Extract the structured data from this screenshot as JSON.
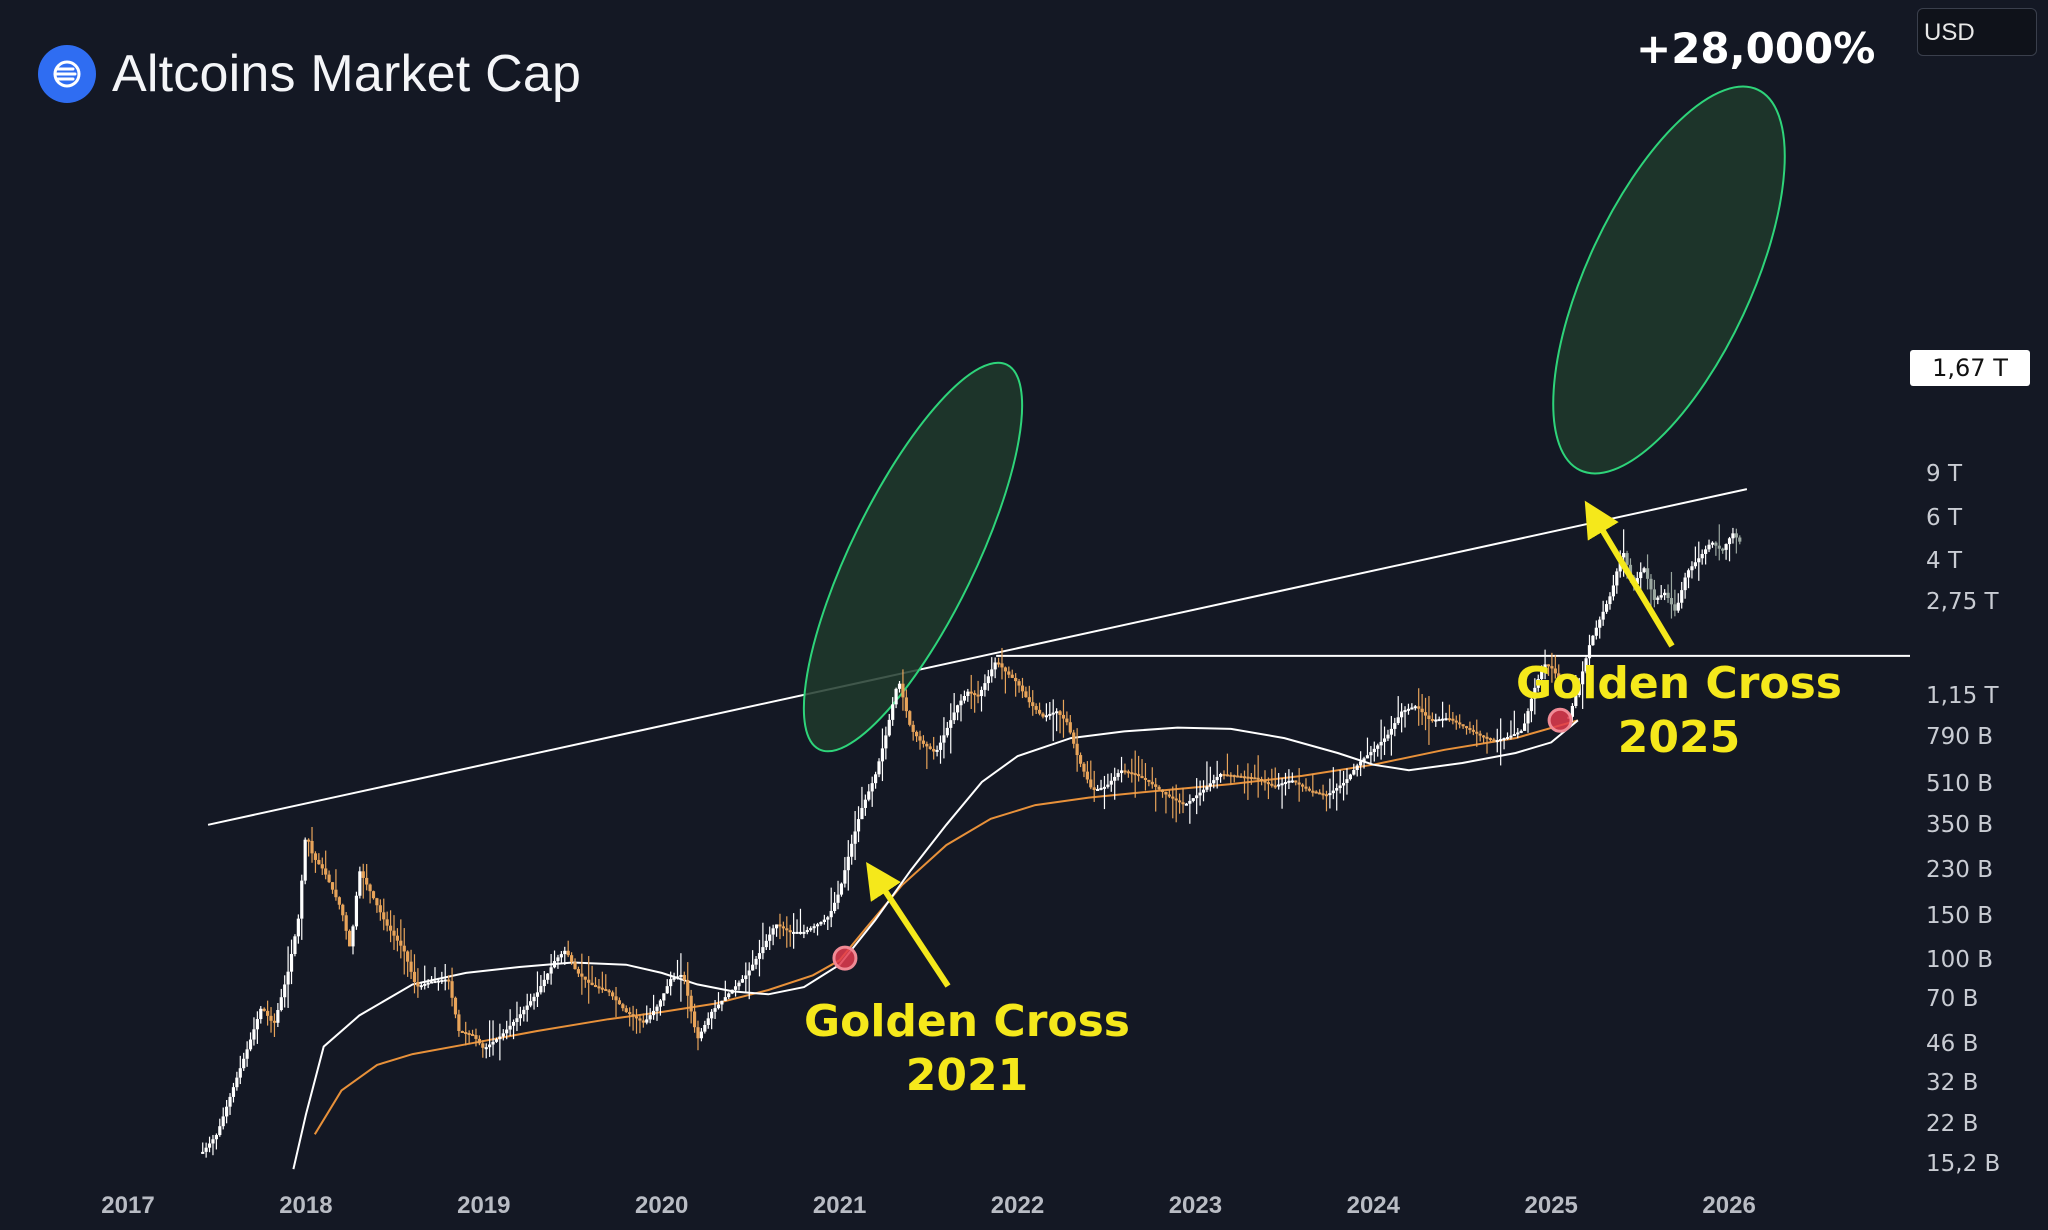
{
  "header": {
    "title": "Altcoins Market Cap",
    "logo_icon": "altcoins-logo-icon",
    "currency": "USD"
  },
  "annotations": {
    "gain": "+28,000%",
    "gc_2021_line1": "Golden Cross",
    "gc_2021_line2": "2021",
    "gc_2025_line1": "Golden Cross",
    "gc_2025_line2": "2025",
    "price_tag": "1,67 T"
  },
  "colors": {
    "background": "#141824",
    "candle": "#e8a45a",
    "candle_alt": "#ffffff",
    "ma_orange": "#e8913a",
    "ma_white": "#ffffff",
    "ellipse_fill": "#1e3a2c",
    "ellipse_stroke": "#2ed47a",
    "cross_marker": "#e23b4e",
    "arrow": "#f5e81b",
    "projection": "#9aa7a0"
  },
  "chart_data": {
    "type": "candlestick",
    "title": "Altcoins Market Cap",
    "currency": "USD",
    "y_scale": "log",
    "y_tick_labels": [
      "9 T",
      "6 T",
      "4 T",
      "2,75 T",
      "1,67 T",
      "1,15 T",
      "790 B",
      "510 B",
      "350 B",
      "230 B",
      "150 B",
      "100 B",
      "70 B",
      "46 B",
      "32 B",
      "22 B",
      "15,2 B"
    ],
    "y_tick_values_usd": [
      9000000000000.0,
      6000000000000.0,
      4000000000000.0,
      2750000000000.0,
      1670000000000.0,
      1150000000000.0,
      790000000000.0,
      510000000000.0,
      350000000000.0,
      230000000000.0,
      150000000000.0,
      100000000000.0,
      70000000000.0,
      46000000000.0,
      32000000000.0,
      22000000000.0,
      15200000000.0
    ],
    "x_tick_labels": [
      "2017",
      "2018",
      "2019",
      "2020",
      "2021",
      "2022",
      "2023",
      "2024",
      "2025",
      "2026"
    ],
    "x_range": [
      2017.0,
      2026.25
    ],
    "y_range_usd": [
      14000000000.0,
      10000000000000.0
    ],
    "series": [
      {
        "kind": "price",
        "points": [
          [
            2017.42,
            17000000000.0
          ],
          [
            2017.5,
            20000000000.0
          ],
          [
            2017.6,
            32000000000.0
          ],
          [
            2017.68,
            46000000000.0
          ],
          [
            2017.75,
            65000000000.0
          ],
          [
            2017.82,
            55000000000.0
          ],
          [
            2017.9,
            90000000000.0
          ],
          [
            2017.96,
            150000000000.0
          ],
          [
            2018.0,
            330000000000.0
          ],
          [
            2018.04,
            260000000000.0
          ],
          [
            2018.1,
            230000000000.0
          ],
          [
            2018.2,
            160000000000.0
          ],
          [
            2018.25,
            110000000000.0
          ],
          [
            2018.3,
            230000000000.0
          ],
          [
            2018.36,
            190000000000.0
          ],
          [
            2018.45,
            140000000000.0
          ],
          [
            2018.55,
            110000000000.0
          ],
          [
            2018.62,
            78000000000.0
          ],
          [
            2018.7,
            82000000000.0
          ],
          [
            2018.8,
            84000000000.0
          ],
          [
            2018.86,
            52000000000.0
          ],
          [
            2018.94,
            50000000000.0
          ],
          [
            2019.0,
            44000000000.0
          ],
          [
            2019.1,
            50000000000.0
          ],
          [
            2019.2,
            60000000000.0
          ],
          [
            2019.3,
            74000000000.0
          ],
          [
            2019.4,
            100000000000.0
          ],
          [
            2019.46,
            110000000000.0
          ],
          [
            2019.52,
            90000000000.0
          ],
          [
            2019.6,
            80000000000.0
          ],
          [
            2019.7,
            75000000000.0
          ],
          [
            2019.8,
            62000000000.0
          ],
          [
            2019.9,
            56000000000.0
          ],
          [
            2019.98,
            66000000000.0
          ],
          [
            2020.05,
            84000000000.0
          ],
          [
            2020.12,
            88000000000.0
          ],
          [
            2020.2,
            48000000000.0
          ],
          [
            2020.28,
            62000000000.0
          ],
          [
            2020.38,
            74000000000.0
          ],
          [
            2020.48,
            88000000000.0
          ],
          [
            2020.56,
            110000000000.0
          ],
          [
            2020.64,
            140000000000.0
          ],
          [
            2020.72,
            130000000000.0
          ],
          [
            2020.8,
            130000000000.0
          ],
          [
            2020.88,
            140000000000.0
          ],
          [
            2020.94,
            150000000000.0
          ],
          [
            2021.0,
            190000000000.0
          ],
          [
            2021.06,
            280000000000.0
          ],
          [
            2021.12,
            400000000000.0
          ],
          [
            2021.2,
            550000000000.0
          ],
          [
            2021.26,
            800000000000.0
          ],
          [
            2021.33,
            1350000000000.0
          ],
          [
            2021.4,
            850000000000.0
          ],
          [
            2021.46,
            750000000000.0
          ],
          [
            2021.54,
            680000000000.0
          ],
          [
            2021.6,
            840000000000.0
          ],
          [
            2021.66,
            1050000000000.0
          ],
          [
            2021.72,
            1200000000000.0
          ],
          [
            2021.78,
            1150000000000.0
          ],
          [
            2021.84,
            1400000000000.0
          ],
          [
            2021.88,
            1600000000000.0
          ],
          [
            2021.93,
            1450000000000.0
          ],
          [
            2022.0,
            1300000000000.0
          ],
          [
            2022.06,
            1100000000000.0
          ],
          [
            2022.14,
            950000000000.0
          ],
          [
            2022.22,
            1000000000000.0
          ],
          [
            2022.28,
            900000000000.0
          ],
          [
            2022.34,
            650000000000.0
          ],
          [
            2022.42,
            480000000000.0
          ],
          [
            2022.5,
            500000000000.0
          ],
          [
            2022.58,
            580000000000.0
          ],
          [
            2022.66,
            560000000000.0
          ],
          [
            2022.74,
            520000000000.0
          ],
          [
            2022.84,
            460000000000.0
          ],
          [
            2022.94,
            420000000000.0
          ],
          [
            2023.04,
            480000000000.0
          ],
          [
            2023.14,
            560000000000.0
          ],
          [
            2023.24,
            550000000000.0
          ],
          [
            2023.34,
            540000000000.0
          ],
          [
            2023.44,
            500000000000.0
          ],
          [
            2023.54,
            530000000000.0
          ],
          [
            2023.64,
            480000000000.0
          ],
          [
            2023.74,
            460000000000.0
          ],
          [
            2023.84,
            520000000000.0
          ],
          [
            2023.92,
            620000000000.0
          ],
          [
            2024.0,
            700000000000.0
          ],
          [
            2024.08,
            800000000000.0
          ],
          [
            2024.16,
            1000000000000.0
          ],
          [
            2024.24,
            1050000000000.0
          ],
          [
            2024.32,
            920000000000.0
          ],
          [
            2024.42,
            940000000000.0
          ],
          [
            2024.52,
            860000000000.0
          ],
          [
            2024.6,
            800000000000.0
          ],
          [
            2024.68,
            760000000000.0
          ],
          [
            2024.76,
            790000000000.0
          ],
          [
            2024.84,
            840000000000.0
          ],
          [
            2024.9,
            1200000000000.0
          ],
          [
            2024.96,
            1550000000000.0
          ],
          [
            2025.0,
            1500000000000.0
          ],
          [
            2025.06,
            1300000000000.0
          ]
        ]
      },
      {
        "kind": "projection",
        "points": [
          [
            2025.1,
            950000000000.0
          ],
          [
            2025.16,
            1300000000000.0
          ],
          [
            2025.22,
            1900000000000.0
          ],
          [
            2025.28,
            2400000000000.0
          ],
          [
            2025.34,
            3000000000000.0
          ],
          [
            2025.4,
            4500000000000.0
          ],
          [
            2025.46,
            3200000000000.0
          ],
          [
            2025.52,
            3800000000000.0
          ],
          [
            2025.58,
            2800000000000.0
          ],
          [
            2025.64,
            3000000000000.0
          ],
          [
            2025.7,
            2500000000000.0
          ],
          [
            2025.76,
            3600000000000.0
          ],
          [
            2025.84,
            4200000000000.0
          ],
          [
            2025.9,
            4800000000000.0
          ],
          [
            2025.96,
            4400000000000.0
          ],
          [
            2026.02,
            5200000000000.0
          ],
          [
            2026.06,
            4800000000000.0
          ]
        ]
      },
      {
        "kind": "moving-average-orange",
        "points": [
          [
            2018.05,
            20000000000.0
          ],
          [
            2018.2,
            30000000000.0
          ],
          [
            2018.4,
            38000000000.0
          ],
          [
            2018.6,
            42000000000.0
          ],
          [
            2018.9,
            46000000000.0
          ],
          [
            2019.3,
            52000000000.0
          ],
          [
            2019.7,
            58000000000.0
          ],
          [
            2020.0,
            62000000000.0
          ],
          [
            2020.3,
            67000000000.0
          ],
          [
            2020.6,
            76000000000.0
          ],
          [
            2020.85,
            87000000000.0
          ],
          [
            2021.0,
            100000000000.0
          ],
          [
            2021.15,
            135000000000.0
          ],
          [
            2021.35,
            200000000000.0
          ],
          [
            2021.6,
            290000000000.0
          ],
          [
            2021.85,
            370000000000.0
          ],
          [
            2022.1,
            420000000000.0
          ],
          [
            2022.4,
            450000000000.0
          ],
          [
            2022.8,
            480000000000.0
          ],
          [
            2023.2,
            510000000000.0
          ],
          [
            2023.6,
            550000000000.0
          ],
          [
            2024.0,
            610000000000.0
          ],
          [
            2024.4,
            700000000000.0
          ],
          [
            2024.8,
            780000000000.0
          ],
          [
            2025.15,
            920000000000.0
          ]
        ]
      },
      {
        "kind": "moving-average-white",
        "points": [
          [
            2017.93,
            14500000000.0
          ],
          [
            2018.0,
            24000000000.0
          ],
          [
            2018.1,
            45000000000.0
          ],
          [
            2018.3,
            60000000000.0
          ],
          [
            2018.6,
            80000000000.0
          ],
          [
            2018.9,
            89000000000.0
          ],
          [
            2019.2,
            94000000000.0
          ],
          [
            2019.5,
            98000000000.0
          ],
          [
            2019.8,
            96000000000.0
          ],
          [
            2020.0,
            89000000000.0
          ],
          [
            2020.2,
            80000000000.0
          ],
          [
            2020.4,
            75000000000.0
          ],
          [
            2020.6,
            73000000000.0
          ],
          [
            2020.8,
            78000000000.0
          ],
          [
            2021.0,
            96000000000.0
          ],
          [
            2021.2,
            145000000000.0
          ],
          [
            2021.4,
            230000000000.0
          ],
          [
            2021.6,
            350000000000.0
          ],
          [
            2021.8,
            520000000000.0
          ],
          [
            2022.0,
            660000000000.0
          ],
          [
            2022.3,
            780000000000.0
          ],
          [
            2022.6,
            830000000000.0
          ],
          [
            2022.9,
            860000000000.0
          ],
          [
            2023.2,
            850000000000.0
          ],
          [
            2023.5,
            780000000000.0
          ],
          [
            2023.8,
            680000000000.0
          ],
          [
            2024.0,
            610000000000.0
          ],
          [
            2024.2,
            580000000000.0
          ],
          [
            2024.5,
            620000000000.0
          ],
          [
            2024.8,
            680000000000.0
          ],
          [
            2025.0,
            750000000000.0
          ],
          [
            2025.15,
            920000000000.0
          ]
        ]
      }
    ],
    "trendlines": [
      {
        "kind": "ascending-resistance",
        "from": [
          2017.45,
          350000000000.0
        ],
        "to": [
          2026.1,
          7800000000000.0
        ]
      },
      {
        "kind": "horizontal",
        "value": 1670000000000.0,
        "label": "1,67 T",
        "from_x": 2021.88
      }
    ],
    "highlights": [
      {
        "kind": "ellipse",
        "around": "2021 rally"
      },
      {
        "kind": "ellipse",
        "around": "2025 rally"
      }
    ],
    "markers": [
      {
        "kind": "golden-cross",
        "x": 2021.03,
        "y": 102000000000.0,
        "label": "Golden Cross 2021"
      },
      {
        "kind": "golden-cross",
        "x": 2025.05,
        "y": 920000000000.0,
        "label": "Golden Cross 2025"
      }
    ]
  }
}
